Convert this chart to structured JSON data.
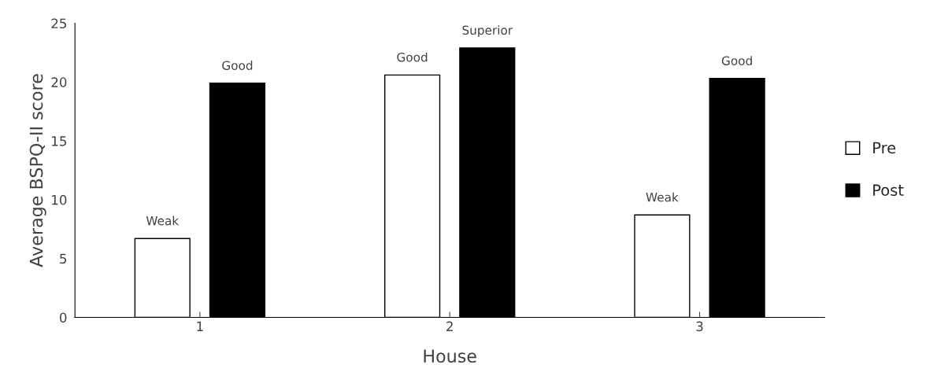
{
  "chart_data": {
    "type": "bar",
    "xlabel": "House",
    "ylabel": "Average BSPQ-II score",
    "categories": [
      "1",
      "2",
      "3"
    ],
    "series": [
      {
        "name": "Pre",
        "color": "#ffffff",
        "values": [
          6.7,
          20.6,
          8.7
        ],
        "value_labels": [
          "Weak",
          "Good",
          "Weak"
        ]
      },
      {
        "name": "Post",
        "color": "#000000",
        "values": [
          19.9,
          22.9,
          20.3
        ],
        "value_labels": [
          "Good",
          "Superior",
          "Good"
        ]
      }
    ],
    "ylim": [
      0,
      25
    ],
    "yticks": [
      0,
      5,
      10,
      15,
      20,
      25
    ],
    "grid": false,
    "legend": "right"
  }
}
